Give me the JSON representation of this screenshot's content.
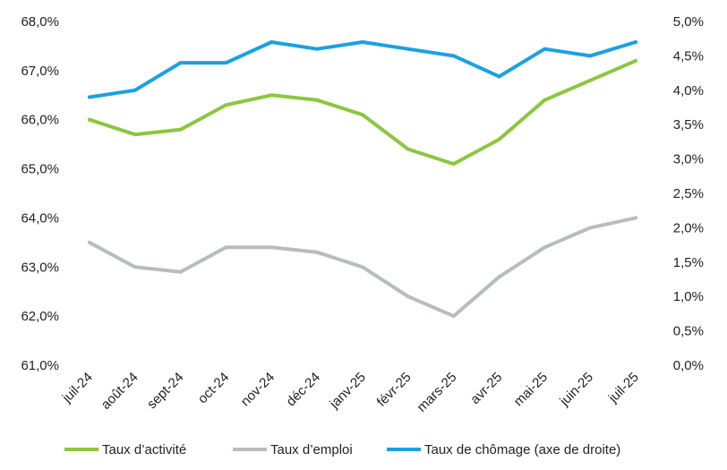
{
  "chart_data": {
    "type": "line",
    "categories": [
      "juil-24",
      "août-24",
      "sept-24",
      "oct-24",
      "nov-24",
      "déc-24",
      "janv-25",
      "févr-25",
      "mars-25",
      "avr-25",
      "mai-25",
      "juin-25",
      "juil-25"
    ],
    "left_axis": {
      "ylim": [
        61.0,
        68.0
      ],
      "ticks": [
        "61,0%",
        "62,0%",
        "63,0%",
        "64,0%",
        "65,0%",
        "66,0%",
        "67,0%",
        "68,0%"
      ]
    },
    "right_axis": {
      "ylim": [
        0.0,
        5.0
      ],
      "ticks": [
        "0,0%",
        "0,5%",
        "1,0%",
        "1,5%",
        "2,0%",
        "2,5%",
        "3,0%",
        "3,5%",
        "4,0%",
        "4,5%",
        "5,0%"
      ]
    },
    "grid": false,
    "legend_position": "bottom",
    "series": [
      {
        "name": "Taux d’activité",
        "axis": "left",
        "color": "#8cc63f",
        "values": [
          66.0,
          65.7,
          65.8,
          66.3,
          66.5,
          66.4,
          66.1,
          65.4,
          65.1,
          65.6,
          66.4,
          66.8,
          67.2
        ]
      },
      {
        "name": "Taux d’emploi",
        "axis": "left",
        "color": "#b8bcc0",
        "values": [
          63.5,
          63.0,
          62.9,
          63.4,
          63.4,
          63.3,
          63.0,
          62.4,
          62.0,
          62.8,
          63.4,
          63.8,
          64.0
        ]
      },
      {
        "name": "Taux de chômage (axe de droite)",
        "axis": "right",
        "color": "#1ba1e2",
        "values": [
          3.9,
          4.0,
          4.4,
          4.4,
          4.7,
          4.6,
          4.7,
          4.6,
          4.5,
          4.2,
          4.6,
          4.5,
          4.7
        ]
      }
    ]
  }
}
